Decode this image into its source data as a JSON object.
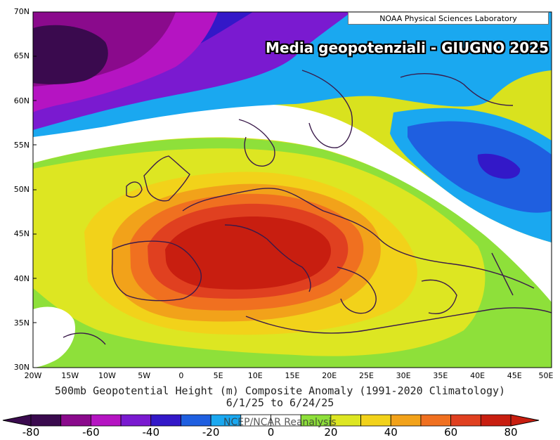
{
  "credit": "NOAA Physical Sciences Laboratory",
  "overlay_title": "Media geopotenziali - GIUGNO 2025",
  "caption": {
    "line1": "500mb Geopotential Height (m) Composite Anomaly (1991-2020 Climatology)",
    "line2": "6/1/25  to 6/24/25"
  },
  "reanalysis": "NCEP/NCAR Reanalysis",
  "latitude_labels": [
    "70N",
    "65N",
    "60N",
    "55N",
    "50N",
    "45N",
    "40N",
    "35N",
    "30N"
  ],
  "longitude_labels": [
    "20W",
    "15W",
    "10W",
    "5W",
    "0",
    "5E",
    "10E",
    "15E",
    "20E",
    "25E",
    "30E",
    "35E",
    "40E",
    "45E",
    "50E"
  ],
  "legend": {
    "tick_labels": [
      "-80",
      "-60",
      "-40",
      "-20",
      "0",
      "20",
      "40",
      "60",
      "80"
    ],
    "colors": [
      "#3a0a4e",
      "#8a0a8c",
      "#b514c2",
      "#7a1ad0",
      "#3318c8",
      "#1f5fe0",
      "#1aa8f0",
      "#ffffff",
      "#ffffff",
      "#8ee03a",
      "#dde622",
      "#f2d21a",
      "#f2a21a",
      "#f07020",
      "#e04020",
      "#c81e10"
    ],
    "arrow_left_color": "#3a0a4e",
    "arrow_right_color": "#c81e10"
  }
}
